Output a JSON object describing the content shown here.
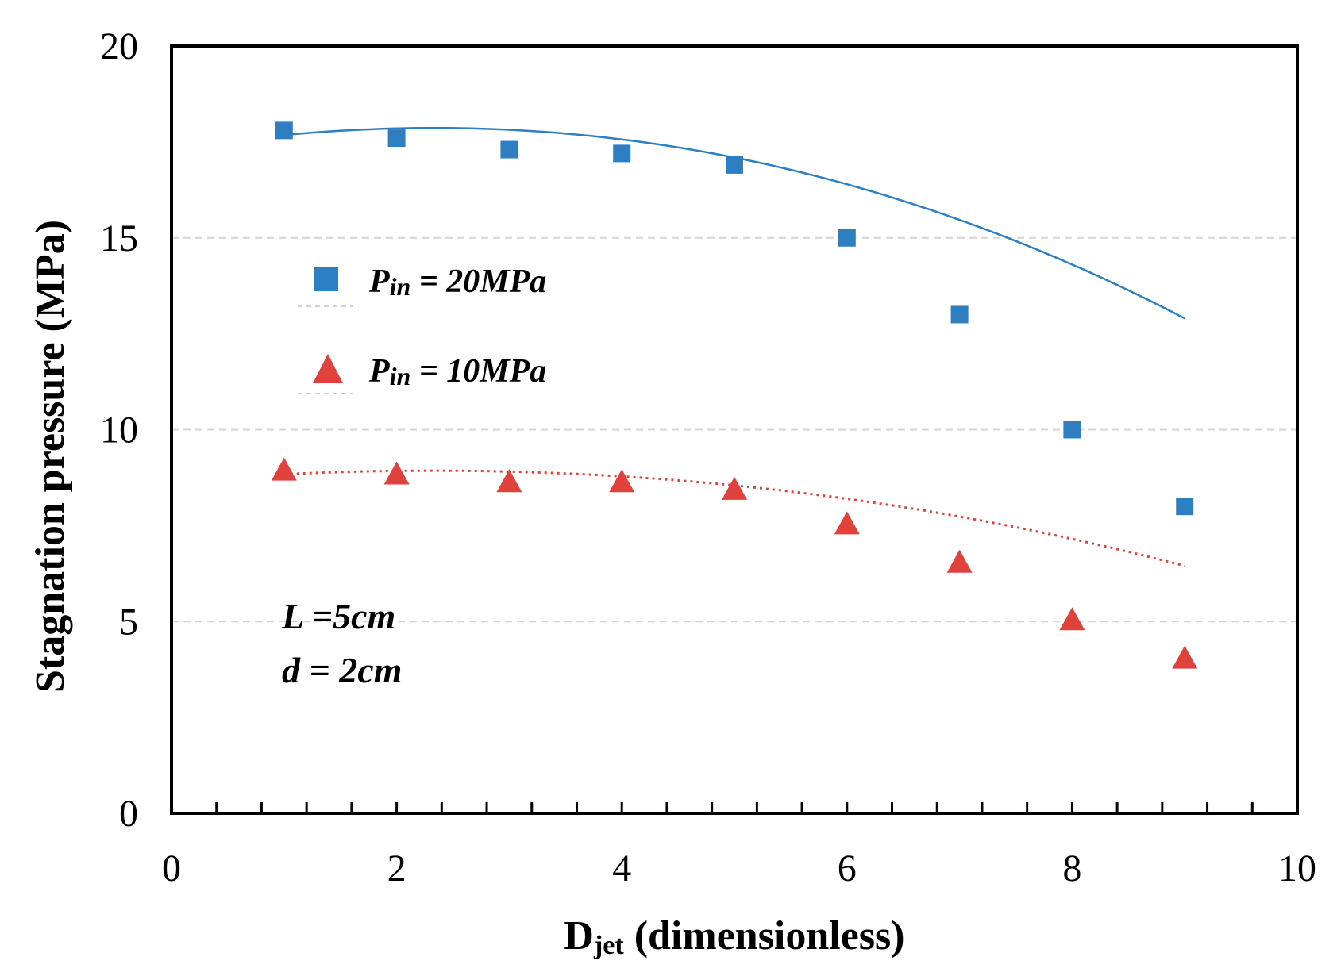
{
  "chart_data": {
    "type": "scatter",
    "title": "",
    "xlabel": "D",
    "xlabel_sub": "jet",
    "xlabel_rest": " (dimensionless)",
    "ylabel": "Stagnation pressure (MPa)",
    "xlim": [
      0,
      10
    ],
    "ylim": [
      0,
      20
    ],
    "xticks": [
      0,
      2,
      4,
      6,
      8,
      10
    ],
    "xtick_labels": [
      "0",
      "2",
      "4",
      "6",
      "8",
      "10"
    ],
    "yticks": [
      0,
      5,
      10,
      15,
      20
    ],
    "ytick_labels": [
      "0",
      "5",
      "10",
      "15",
      "20"
    ],
    "x_minor_step": 0.4,
    "grid": "horizontal dashed",
    "legend_position": "upper-left",
    "series": [
      {
        "name": "Pin = 20MPa",
        "legend_main": "P",
        "legend_sub": "in",
        "legend_rest": " = 20MPa",
        "marker": "square",
        "color": "#2e7fc2",
        "x": [
          1,
          2,
          3,
          4,
          5,
          6,
          7,
          8,
          9
        ],
        "values": [
          17.8,
          17.6,
          17.3,
          17.2,
          16.9,
          15.0,
          13.0,
          10.0,
          8.0
        ],
        "fit": {
          "style": "solid",
          "coeffs": [
            17.3,
            0.48,
            -0.1,
            -0.00085
          ]
        }
      },
      {
        "name": "Pin = 10MPa",
        "legend_main": "P",
        "legend_sub": "in",
        "legend_rest": " = 10MPa",
        "marker": "triangle",
        "color": "#e0413d",
        "x": [
          1,
          2,
          3,
          4,
          5,
          6,
          7,
          8,
          9
        ],
        "values": [
          8.9,
          8.8,
          8.6,
          8.6,
          8.4,
          7.5,
          6.5,
          5.0,
          4.0
        ],
        "fit": {
          "style": "dotted",
          "coeffs": [
            8.65,
            0.24,
            -0.05,
            -0.000425
          ]
        }
      }
    ],
    "annotations": [
      "L =5cm",
      "d = 2cm"
    ]
  }
}
